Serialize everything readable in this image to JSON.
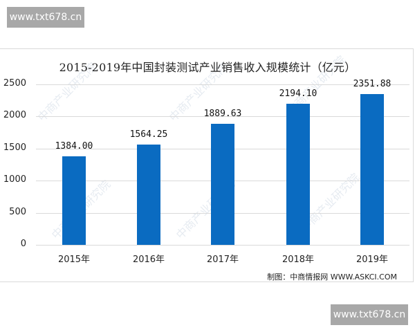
{
  "watermark": {
    "top": "www.txt678.cn",
    "bottom": "www.txt678.cn",
    "background": "中商产业研究院"
  },
  "chart_data": {
    "type": "bar",
    "title": "2015-2019年中国封装测试产业销售收入规模统计（亿元）",
    "categories": [
      "2015年",
      "2016年",
      "2017年",
      "2018年",
      "2019年"
    ],
    "values": [
      1384.0,
      1564.25,
      1889.63,
      2194.1,
      2351.88
    ],
    "value_labels": [
      "1384.00",
      "1564.25",
      "1889.63",
      "2194.10",
      "2351.88"
    ],
    "xlabel": "",
    "ylabel": "",
    "ylim": [
      0,
      2500
    ],
    "yticks": [
      "2500",
      "2000",
      "1500",
      "1000",
      "500",
      "0"
    ],
    "grid": true,
    "legend": null,
    "bar_color": "#0a6bc1",
    "source": "制图：中商情报网 WWW.ASKCI.COM"
  }
}
